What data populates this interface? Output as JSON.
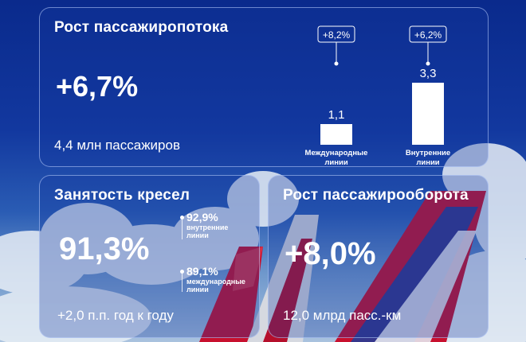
{
  "colors": {
    "background": "#0a2a8c",
    "card_border": "#bed2ff",
    "bar": "#ffffff",
    "text": "#ffffff"
  },
  "passenger_growth": {
    "title": "Рост пассажиропотока",
    "value": "+6,7%",
    "subtitle": "4,4 млн пассажиров"
  },
  "seat_occupancy": {
    "title": "Занятость кресел",
    "value": "91,3%",
    "subtitle": "+2,0 п.п. год к году",
    "domestic_value": "92,9%",
    "domestic_label_1": "внутренние",
    "domestic_label_2": "линии",
    "international_value": "89,1%",
    "international_label_1": "международные",
    "international_label_2": "линии"
  },
  "passenger_turnover": {
    "title": "Рост пассажирооборота",
    "value": "+8,0%",
    "subtitle": "12,0 млрд пасс.-км"
  },
  "chart_data": {
    "type": "bar",
    "categories": [
      "Международные линии",
      "Внутренние линии"
    ],
    "category_lines": [
      [
        "Международные",
        "линии"
      ],
      [
        "Внутренние",
        "линии"
      ]
    ],
    "values": [
      1.1,
      3.3
    ],
    "value_labels": [
      "1,1",
      "3,3"
    ],
    "growth_labels": [
      "+8,2%",
      "+6,2%"
    ],
    "unit": "млн пассажиров"
  }
}
